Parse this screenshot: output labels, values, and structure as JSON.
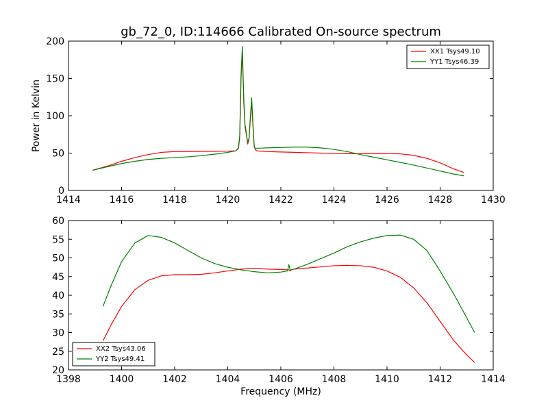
{
  "chart_data": [
    {
      "type": "line",
      "title": "gb_72_0, ID:114666 Calibrated On-source spectrum",
      "xlabel": "",
      "ylabel": "Power in Kelvin",
      "xlim": [
        1414,
        1430
      ],
      "ylim": [
        0,
        200
      ],
      "xticks": [
        "1414",
        "1416",
        "1418",
        "1420",
        "1422",
        "1424",
        "1426",
        "1428",
        "1430"
      ],
      "yticks": [
        "0",
        "50",
        "100",
        "150",
        "200"
      ],
      "legend_position": "top-right",
      "grid": false,
      "series": [
        {
          "name": "XX1 Tsys49.10",
          "color": "#ff0000",
          "x": [
            1414.9,
            1415.5,
            1416.0,
            1416.5,
            1417.0,
            1417.5,
            1418.0,
            1418.5,
            1419.0,
            1419.5,
            1420.0,
            1420.3,
            1420.4,
            1420.45,
            1420.5,
            1420.55,
            1420.6,
            1420.65,
            1420.7,
            1420.75,
            1420.8,
            1420.85,
            1420.9,
            1420.95,
            1421.0,
            1421.05,
            1421.1,
            1421.5,
            1422.0,
            1422.5,
            1423.0,
            1423.5,
            1424.0,
            1424.5,
            1425.0,
            1425.5,
            1426.0,
            1426.5,
            1427.0,
            1427.5,
            1428.0,
            1428.5,
            1428.9
          ],
          "y": [
            27,
            33,
            39,
            44,
            48,
            51,
            52,
            52.2,
            52.3,
            52.4,
            52.6,
            53,
            56,
            70,
            150,
            185,
            120,
            85,
            75,
            62,
            68,
            95,
            118,
            85,
            58,
            54,
            53,
            52,
            51.5,
            51,
            50.5,
            50,
            49.5,
            49.2,
            49.2,
            49.4,
            49.5,
            49,
            47,
            43,
            37,
            29,
            24
          ]
        },
        {
          "name": "YY1 Tsys46.39",
          "color": "#008000",
          "x": [
            1414.9,
            1415.5,
            1416.0,
            1416.5,
            1417.0,
            1417.5,
            1418.0,
            1418.5,
            1419.0,
            1419.5,
            1420.0,
            1420.3,
            1420.4,
            1420.45,
            1420.5,
            1420.55,
            1420.6,
            1420.65,
            1420.7,
            1420.75,
            1420.8,
            1420.85,
            1420.9,
            1420.95,
            1421.0,
            1421.05,
            1421.1,
            1421.5,
            1422.0,
            1422.5,
            1423.0,
            1423.5,
            1424.0,
            1424.5,
            1425.0,
            1425.5,
            1426.0,
            1426.5,
            1427.0,
            1427.5,
            1428.0,
            1428.5,
            1428.9
          ],
          "y": [
            27,
            32,
            36,
            39,
            41.5,
            43,
            44,
            45,
            46.5,
            48.5,
            51,
            53,
            57,
            73,
            155,
            193,
            125,
            88,
            77,
            64,
            70,
            98,
            124,
            88,
            58,
            56,
            56.5,
            57,
            57.5,
            58,
            58,
            57,
            55,
            52,
            48,
            44.5,
            41,
            37.5,
            34,
            30,
            26,
            22,
            19.5
          ]
        }
      ]
    },
    {
      "type": "line",
      "title": "",
      "xlabel": "Frequency (MHz)",
      "ylabel": "",
      "xlim": [
        1398,
        1414
      ],
      "ylim": [
        20,
        60
      ],
      "xticks": [
        "1398",
        "1400",
        "1402",
        "1404",
        "1406",
        "1408",
        "1410",
        "1412",
        "1414"
      ],
      "yticks": [
        "20",
        "25",
        "30",
        "35",
        "40",
        "45",
        "50",
        "55",
        "60"
      ],
      "legend_position": "bottom-left",
      "grid": false,
      "series": [
        {
          "name": "XX2 Tsys43.06",
          "color": "#ff0000",
          "x": [
            1399.3,
            1399.6,
            1400.0,
            1400.5,
            1401.0,
            1401.5,
            1402.0,
            1402.5,
            1403.0,
            1403.5,
            1404.0,
            1404.5,
            1405.0,
            1405.5,
            1406.0,
            1406.3,
            1406.35,
            1406.4,
            1406.5,
            1407.0,
            1407.5,
            1408.0,
            1408.5,
            1409.0,
            1409.5,
            1410.0,
            1410.5,
            1411.0,
            1411.5,
            1412.0,
            1412.5,
            1413.0,
            1413.3
          ],
          "y": [
            27.8,
            32,
            37,
            41.5,
            44,
            45.2,
            45.5,
            45.5,
            45.6,
            46,
            46.5,
            47,
            47.2,
            47,
            46.9,
            46.8,
            46.5,
            46.8,
            47,
            47.3,
            47.6,
            47.9,
            48,
            47.9,
            47.5,
            46.5,
            44.8,
            42,
            38,
            33,
            28,
            24,
            22
          ]
        },
        {
          "name": "YY2 Tsys49.41",
          "color": "#008000",
          "x": [
            1399.3,
            1399.6,
            1400.0,
            1400.5,
            1401.0,
            1401.5,
            1402.0,
            1402.5,
            1403.0,
            1403.5,
            1404.0,
            1404.5,
            1405.0,
            1405.5,
            1406.0,
            1406.25,
            1406.3,
            1406.35,
            1406.5,
            1407.0,
            1407.5,
            1408.0,
            1408.5,
            1409.0,
            1409.5,
            1410.0,
            1410.5,
            1411.0,
            1411.5,
            1412.0,
            1412.5,
            1413.0,
            1413.3
          ],
          "y": [
            37,
            42.5,
            49,
            54,
            56,
            55.5,
            54,
            52,
            50,
            48.5,
            47.5,
            46.8,
            46.3,
            46,
            46.2,
            46.5,
            48.2,
            46.7,
            47,
            48.3,
            49.8,
            51.3,
            53,
            54.3,
            55.3,
            56,
            56.1,
            55,
            52,
            46.5,
            40.5,
            34,
            30
          ]
        }
      ]
    }
  ]
}
